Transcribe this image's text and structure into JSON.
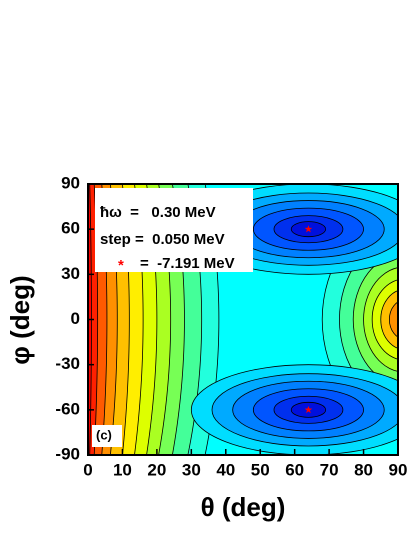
{
  "chart_data": {
    "type": "contour",
    "xlabel": "θ (deg)",
    "ylabel": "φ (deg)",
    "xlim": [
      0,
      90
    ],
    "ylim": [
      -90,
      90
    ],
    "xticks": [
      0,
      10,
      20,
      30,
      40,
      50,
      60,
      70,
      80,
      90
    ],
    "yticks": [
      -90,
      -60,
      -30,
      0,
      30,
      60,
      90
    ],
    "legend_lines": [
      "ħω  =   0.30 MeV",
      "step =  0.050 MeV",
      "=  -7.191 MeV"
    ],
    "panel_label": "(c)",
    "markers": {
      "x": [
        64,
        64
      ],
      "y": [
        60,
        -60
      ],
      "color": "#ff0000"
    }
  }
}
